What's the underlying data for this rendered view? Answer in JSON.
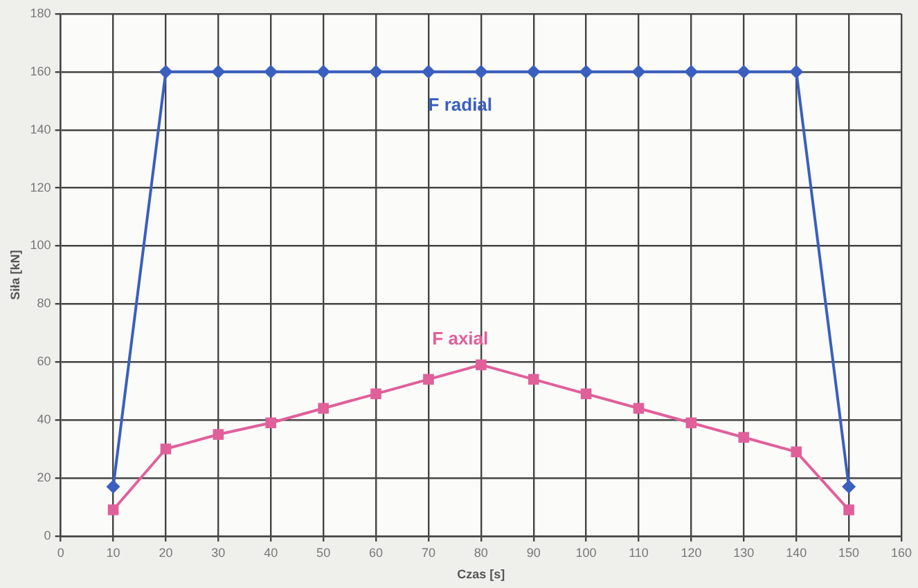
{
  "chart_data": {
    "type": "line",
    "xlabel": "Czas [s]",
    "ylabel": "Siła [kN]",
    "x": [
      10,
      20,
      30,
      40,
      50,
      60,
      70,
      80,
      90,
      100,
      110,
      120,
      130,
      140,
      150
    ],
    "xlim": [
      0,
      160
    ],
    "xticks": [
      0,
      10,
      20,
      30,
      40,
      50,
      60,
      70,
      80,
      90,
      100,
      110,
      120,
      130,
      140,
      150,
      160
    ],
    "ylim": [
      0,
      180
    ],
    "yticks": [
      0,
      20,
      40,
      60,
      80,
      100,
      120,
      140,
      160,
      180
    ],
    "grid": true,
    "series": [
      {
        "name": "F radial",
        "color": "#3a5fbf",
        "marker": "diamond",
        "values": [
          17,
          160,
          160,
          160,
          160,
          160,
          160,
          160,
          160,
          160,
          160,
          160,
          160,
          160,
          17
        ]
      },
      {
        "name": "F axial",
        "color": "#e0609a",
        "marker": "square",
        "values": [
          9,
          30,
          35,
          39,
          44,
          49,
          54,
          59,
          54,
          49,
          44,
          39,
          34,
          29,
          9
        ]
      }
    ]
  }
}
